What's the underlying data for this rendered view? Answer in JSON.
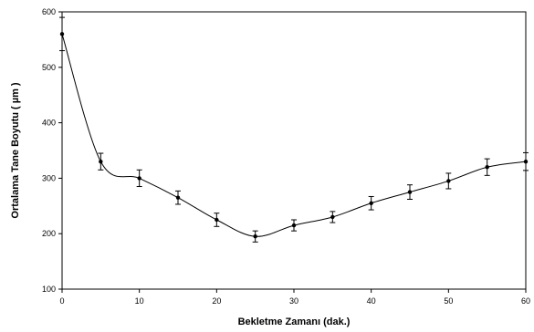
{
  "chart_data": {
    "type": "line",
    "title": "",
    "xlabel": "Bekletme Zamanı (dak.)",
    "ylabel": "Ortalama Tane Boyutu ( µm )",
    "xlim": [
      0,
      60
    ],
    "ylim": [
      100,
      600
    ],
    "xticks": [
      0,
      10,
      20,
      30,
      40,
      50,
      60
    ],
    "yticks": [
      100,
      200,
      300,
      400,
      500,
      600
    ],
    "grid": false,
    "smoothed": true,
    "series": [
      {
        "x": [
          0,
          5,
          10,
          15,
          20,
          25,
          30,
          35,
          40,
          45,
          50,
          55,
          60
        ],
        "y": [
          560,
          330,
          300,
          265,
          225,
          195,
          215,
          230,
          255,
          275,
          295,
          320,
          330
        ],
        "error": [
          30,
          15,
          15,
          12,
          12,
          10,
          10,
          10,
          12,
          13,
          14,
          15,
          16
        ]
      }
    ]
  }
}
